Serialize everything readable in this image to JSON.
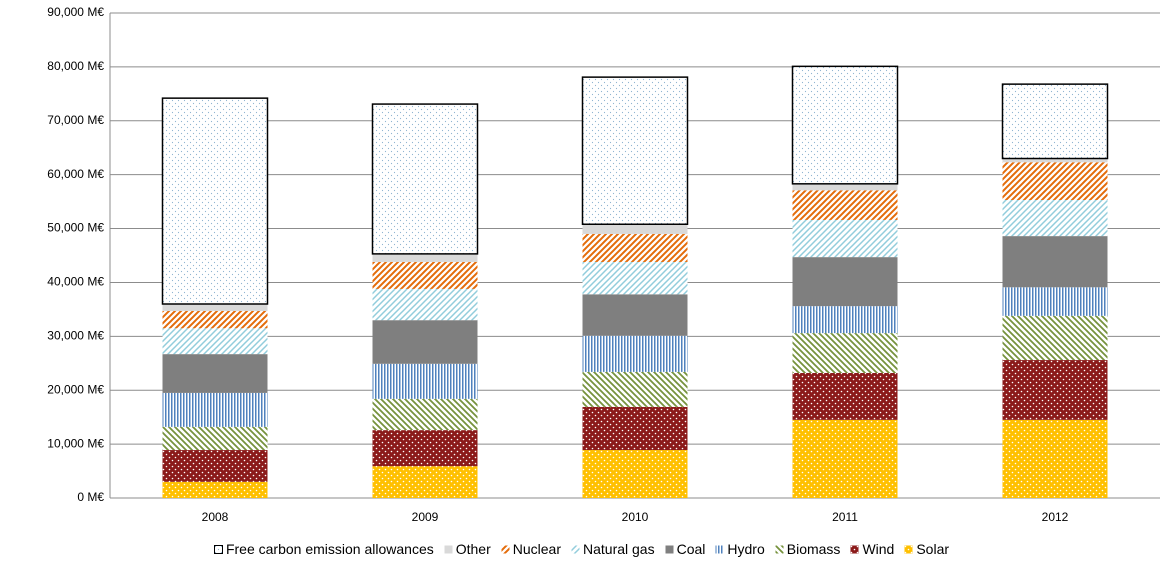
{
  "chart_data": {
    "type": "stacked_bar",
    "categories": [
      "2008",
      "2009",
      "2010",
      "2011",
      "2012"
    ],
    "series": [
      {
        "name": "Solar",
        "color": "#ffc000",
        "values": [
          3000,
          5900,
          8900,
          14500,
          14500
        ]
      },
      {
        "name": "Wind",
        "color": "#8b1a1a",
        "values": [
          5900,
          6700,
          8000,
          8700,
          11100
        ]
      },
      {
        "name": "Biomass",
        "color": "#76923c",
        "values": [
          4300,
          5800,
          6500,
          7400,
          8200
        ]
      },
      {
        "name": "Hydro",
        "color": "#4f81bd",
        "values": [
          6300,
          6500,
          6700,
          5000,
          5300
        ]
      },
      {
        "name": "Coal",
        "color": "#7f7f7f",
        "values": [
          7200,
          8100,
          7700,
          9100,
          9500
        ]
      },
      {
        "name": "Natural gas",
        "color": "#92cddc",
        "values": [
          4800,
          5800,
          6000,
          6900,
          6700
        ]
      },
      {
        "name": "Nuclear",
        "color": "#e46c0a",
        "values": [
          3200,
          5000,
          5200,
          5500,
          7000
        ]
      },
      {
        "name": "Other",
        "color": "#d9d9d9",
        "values": [
          1300,
          1500,
          1800,
          1200,
          700
        ]
      },
      {
        "name": "Free carbon emission allowances",
        "color": "#8eb4d0",
        "values": [
          38200,
          27800,
          27300,
          21800,
          13800
        ]
      }
    ],
    "ylim": [
      0,
      90000
    ],
    "yticks": [
      {
        "value": 0,
        "label": "0 M€"
      },
      {
        "value": 10000,
        "label": "10,000 M€"
      },
      {
        "value": 20000,
        "label": "20,000 M€"
      },
      {
        "value": 30000,
        "label": "30,000 M€"
      },
      {
        "value": 40000,
        "label": "40,000 M€"
      },
      {
        "value": 50000,
        "label": "50,000 M€"
      },
      {
        "value": 60000,
        "label": "60,000 M€"
      },
      {
        "value": 70000,
        "label": "70,000 M€"
      },
      {
        "value": 80000,
        "label": "80,000 M€"
      },
      {
        "value": 90000,
        "label": "90,000 M€"
      }
    ],
    "grid": true
  }
}
